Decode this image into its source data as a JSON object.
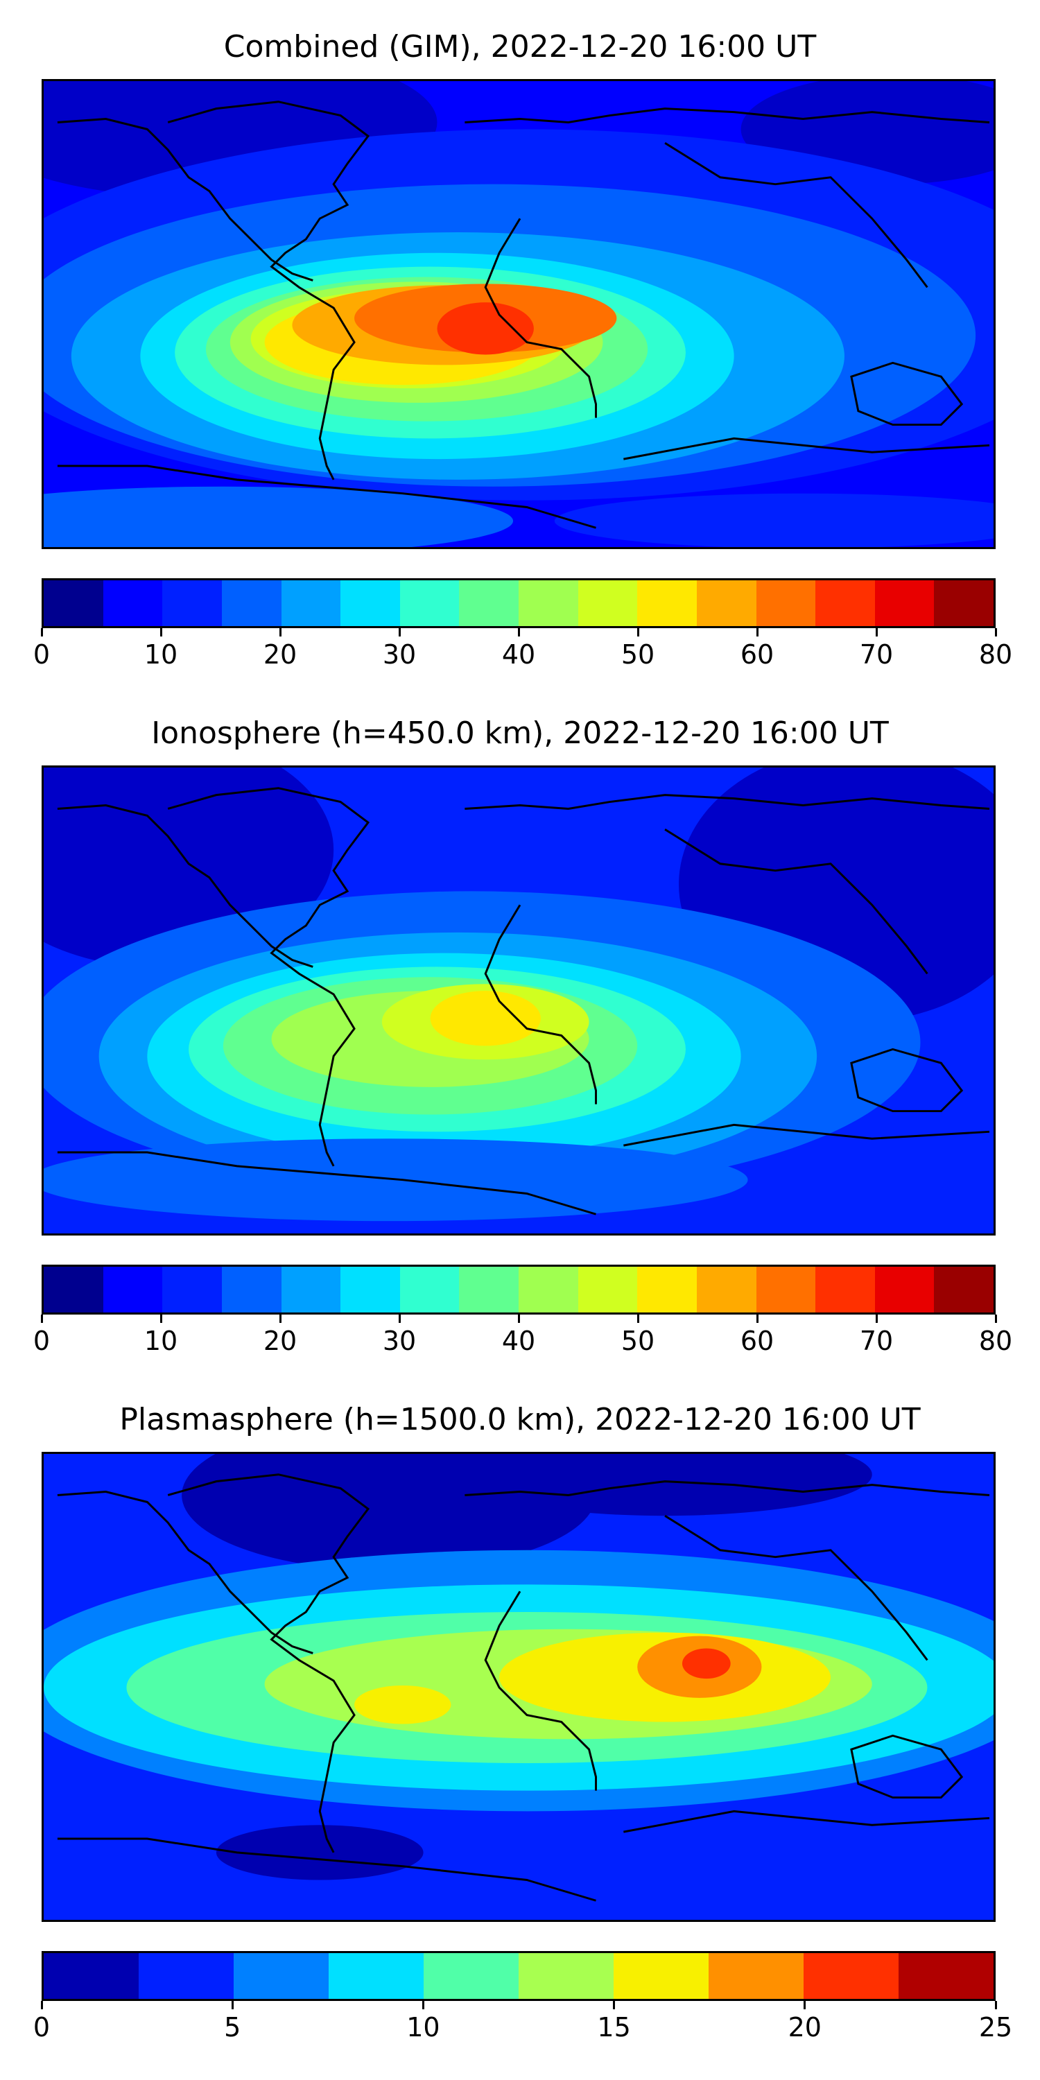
{
  "panels": [
    {
      "title": "Combined (GIM), 2022-12-20 16:00 UT",
      "colorbar": {
        "ticks": [
          "0",
          "10",
          "20",
          "30",
          "40",
          "50",
          "60",
          "70",
          "80"
        ],
        "colors": [
          "#00008f",
          "#0000ff",
          "#0020ff",
          "#0060ff",
          "#00a0ff",
          "#00e0ff",
          "#30ffd0",
          "#60ff90",
          "#a0ff50",
          "#d0ff20",
          "#ffe800",
          "#ffaa00",
          "#ff7000",
          "#ff3000",
          "#e80000",
          "#9a0000"
        ]
      }
    },
    {
      "title": "Ionosphere  (h=450.0 km), 2022-12-20 16:00 UT",
      "colorbar": {
        "ticks": [
          "0",
          "10",
          "20",
          "30",
          "40",
          "50",
          "60",
          "70",
          "80"
        ],
        "colors": [
          "#00008f",
          "#0000ff",
          "#0020ff",
          "#0060ff",
          "#00a0ff",
          "#00e0ff",
          "#30ffd0",
          "#60ff90",
          "#a0ff50",
          "#d0ff20",
          "#ffe800",
          "#ffaa00",
          "#ff7000",
          "#ff3000",
          "#e80000",
          "#9a0000"
        ]
      }
    },
    {
      "title": "Plasmasphere (h=1500.0 km), 2022-12-20 16:00 UT",
      "colorbar": {
        "ticks": [
          "0",
          "5",
          "10",
          "15",
          "20",
          "25"
        ],
        "colors": [
          "#0000b0",
          "#0020ff",
          "#0080ff",
          "#00e0ff",
          "#50ffa8",
          "#a8ff50",
          "#f8f000",
          "#ff9000",
          "#ff3000",
          "#b00000"
        ]
      }
    }
  ]
}
